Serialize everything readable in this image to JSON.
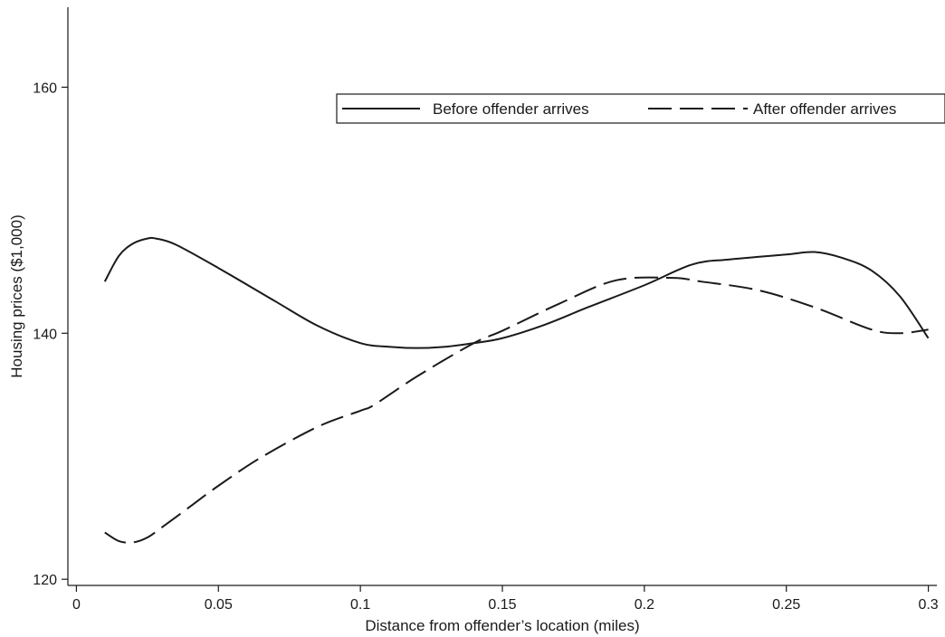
{
  "chart_data": {
    "type": "line",
    "title": "",
    "xlabel": "Distance from offender’s location (miles)",
    "ylabel": "Housing prices ($1,000)",
    "xlim": [
      -0.003,
      0.303
    ],
    "ylim": [
      119.5,
      166.5
    ],
    "x_ticks": [
      0,
      0.05,
      0.1,
      0.15,
      0.2,
      0.25,
      0.3
    ],
    "x_tick_labels": [
      "0",
      "0.05",
      "0.1",
      "0.15",
      "0.2",
      "0.25",
      "0.3"
    ],
    "y_ticks": [
      120,
      140,
      160
    ],
    "y_tick_labels": [
      "120",
      "140",
      "160"
    ],
    "grid": false,
    "legend": {
      "placement": "top-right",
      "box": true
    },
    "series": [
      {
        "name": "Before offender arrives",
        "style": "solid",
        "color": "#1a1a1a",
        "x": [
          0.01,
          0.015,
          0.02,
          0.025,
          0.028,
          0.035,
          0.05,
          0.07,
          0.085,
          0.1,
          0.11,
          0.12,
          0.13,
          0.14,
          0.15,
          0.165,
          0.18,
          0.2,
          0.217,
          0.23,
          0.25,
          0.26,
          0.27,
          0.28,
          0.29,
          0.3
        ],
        "y": [
          144.2,
          146.3,
          147.3,
          147.7,
          147.7,
          147.2,
          145.3,
          142.6,
          140.6,
          139.2,
          138.9,
          138.8,
          138.9,
          139.2,
          139.6,
          140.7,
          142.1,
          143.9,
          145.6,
          146.0,
          146.4,
          146.6,
          146.1,
          145.1,
          143.0,
          139.6
        ]
      },
      {
        "name": "After offender arrives",
        "style": "dashed",
        "color": "#1a1a1a",
        "x": [
          0.01,
          0.015,
          0.02,
          0.025,
          0.03,
          0.04,
          0.05,
          0.065,
          0.085,
          0.1,
          0.105,
          0.12,
          0.14,
          0.15,
          0.17,
          0.19,
          0.21,
          0.22,
          0.24,
          0.26,
          0.28,
          0.29,
          0.3
        ],
        "y": [
          123.8,
          123.1,
          123.0,
          123.4,
          124.2,
          125.9,
          127.6,
          129.9,
          132.4,
          133.7,
          134.2,
          136.5,
          139.2,
          140.2,
          142.4,
          144.3,
          144.5,
          144.2,
          143.5,
          142.1,
          140.3,
          140.0,
          140.3
        ]
      }
    ]
  }
}
